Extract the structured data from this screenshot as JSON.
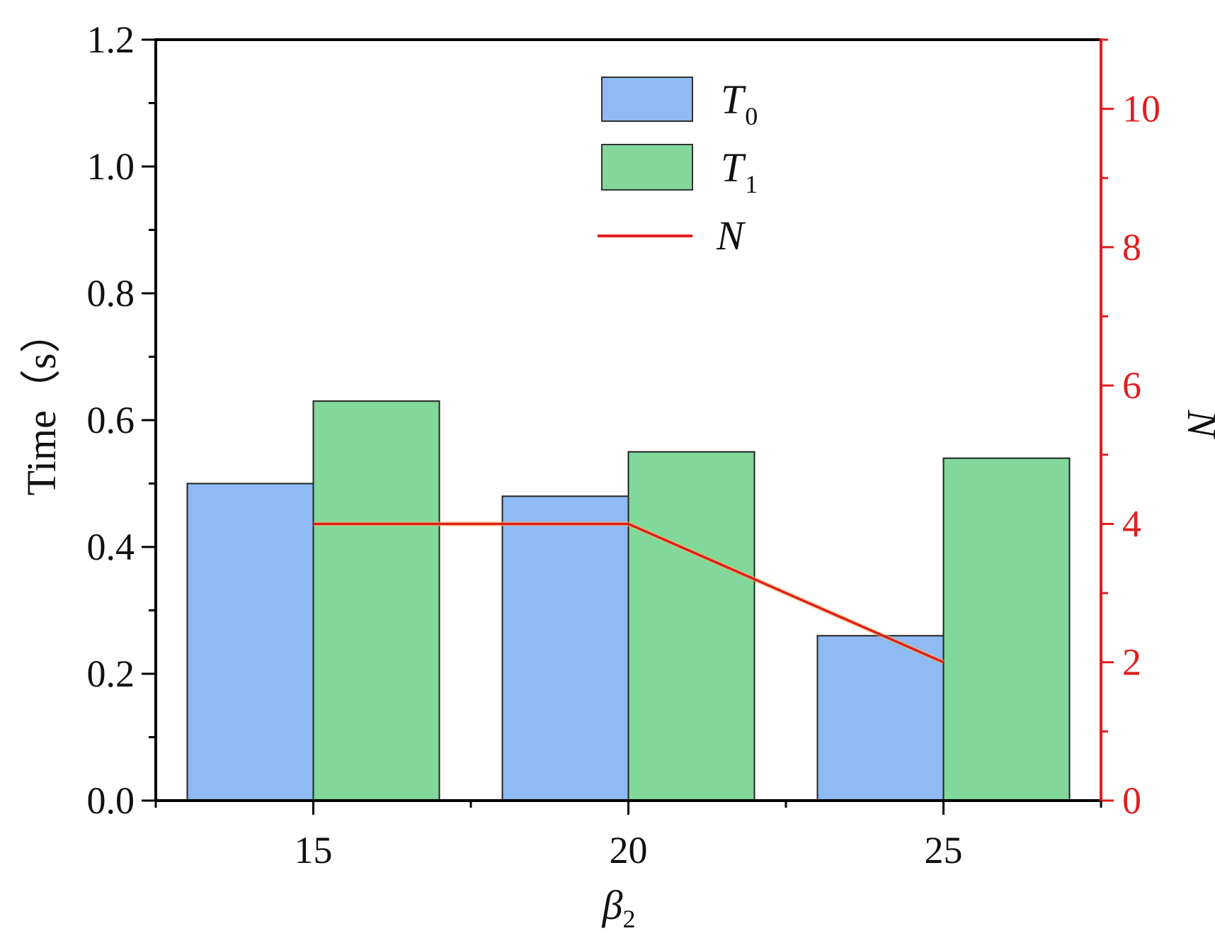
{
  "chart_data": {
    "type": "bar",
    "categories": [
      "15",
      "20",
      "25"
    ],
    "x": [
      15,
      20,
      25
    ],
    "series": [
      {
        "name": "T",
        "subscript": "0",
        "type": "bar",
        "axis": "left",
        "color": "#8fbaf3",
        "values": [
          0.5,
          0.48,
          0.26
        ]
      },
      {
        "name": "T",
        "subscript": "1",
        "type": "bar",
        "axis": "left",
        "color": "#82d79b",
        "values": [
          0.63,
          0.55,
          0.54
        ]
      },
      {
        "name": "N",
        "subscript": "",
        "type": "line",
        "axis": "right",
        "color": "#e01e1e",
        "values": [
          4,
          4,
          2
        ]
      }
    ],
    "xlabel": "β",
    "xlabel_subscript": "2",
    "ylabel": "Time（s）",
    "y2label": "N",
    "xlim": [
      12.5,
      27.5
    ],
    "ylim": [
      0,
      1.2
    ],
    "y2lim": [
      0,
      11
    ],
    "xticks": [
      "15",
      "20",
      "25"
    ],
    "yticks": [
      "0.0",
      "0.2",
      "0.4",
      "0.6",
      "0.8",
      "1.0",
      "1.2"
    ],
    "y2ticks": [
      "0",
      "2",
      "4",
      "6",
      "8",
      "10"
    ],
    "y2_axis_color": "#e01e1e",
    "legend_position": "top-center",
    "grid": false
  }
}
